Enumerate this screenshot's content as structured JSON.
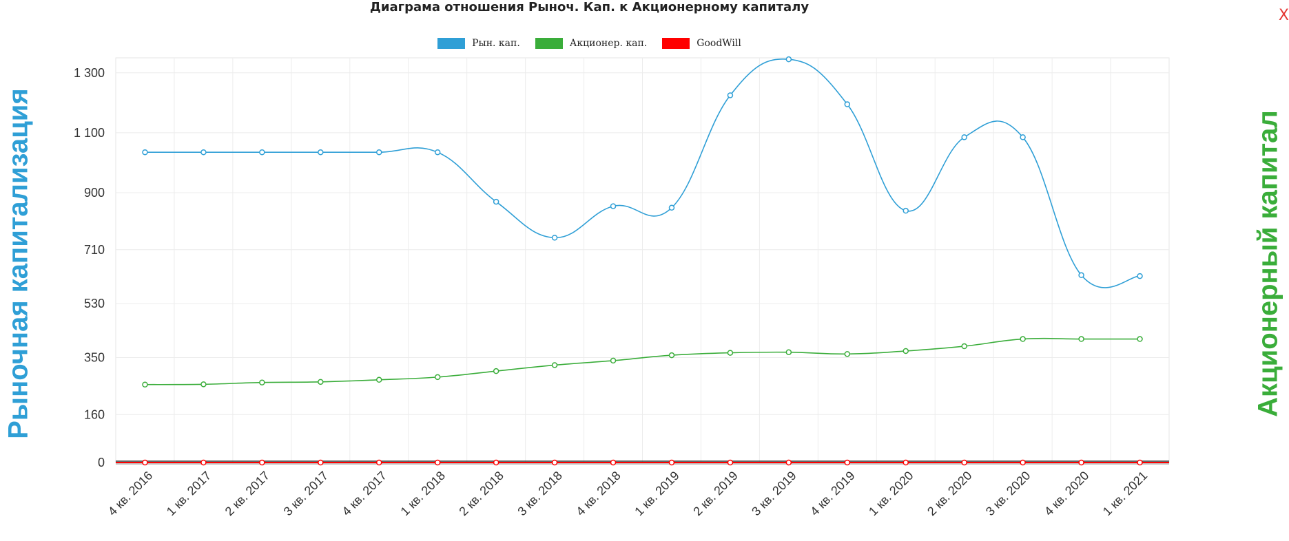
{
  "close_label": "X",
  "legend": [
    {
      "label": "Рын. кап.",
      "color": "#2f9fd6"
    },
    {
      "label": "Акционер. кап.",
      "color": "#3aad3a"
    },
    {
      "label": "GoodWill",
      "color": "#ff0000"
    }
  ],
  "chart_data": {
    "type": "line",
    "title": "Диаграма отношения Рыноч. Кап. к Акционерному капиталу",
    "ylabel": "Рыночная капитализация",
    "y2label": "Акционерный капитал",
    "ylim": [
      0,
      1350
    ],
    "y_ticks": [
      0,
      160,
      350,
      530,
      710,
      900,
      1100,
      1300
    ],
    "y_tick_labels": [
      "0",
      "160",
      "350",
      "530",
      "710",
      "900",
      "1 100",
      "1 300"
    ],
    "grid": true,
    "legend_position": "top-center",
    "categories": [
      "4 кв. 2016",
      "1 кв. 2017",
      "2 кв. 2017",
      "3 кв. 2017",
      "4 кв. 2017",
      "1 кв. 2018",
      "2 кв. 2018",
      "3 кв. 2018",
      "4 кв. 2018",
      "1 кв. 2019",
      "2 кв. 2019",
      "3 кв. 2019",
      "4 кв. 2019",
      "1 кв. 2020",
      "2 кв. 2020",
      "3 кв. 2020",
      "4 кв. 2020",
      "1 кв. 2021"
    ],
    "series": [
      {
        "name": "Рын. кап.",
        "color": "#2f9fd6",
        "values": [
          1035,
          1035,
          1035,
          1035,
          1035,
          1035,
          870,
          750,
          855,
          850,
          1225,
          1345,
          1195,
          840,
          1085,
          1085,
          625,
          622
        ]
      },
      {
        "name": "Акционер. кап.",
        "color": "#3aad3a",
        "values": [
          260,
          261,
          267,
          269,
          276,
          285,
          305,
          325,
          340,
          358,
          366,
          368,
          362,
          372,
          388,
          412,
          412,
          412
        ]
      },
      {
        "name": "GoodWill",
        "color": "#ff0000",
        "values": [
          0,
          0,
          0,
          0,
          0,
          0,
          0,
          0,
          0,
          0,
          0,
          0,
          0,
          0,
          0,
          0,
          0,
          0
        ]
      }
    ]
  }
}
